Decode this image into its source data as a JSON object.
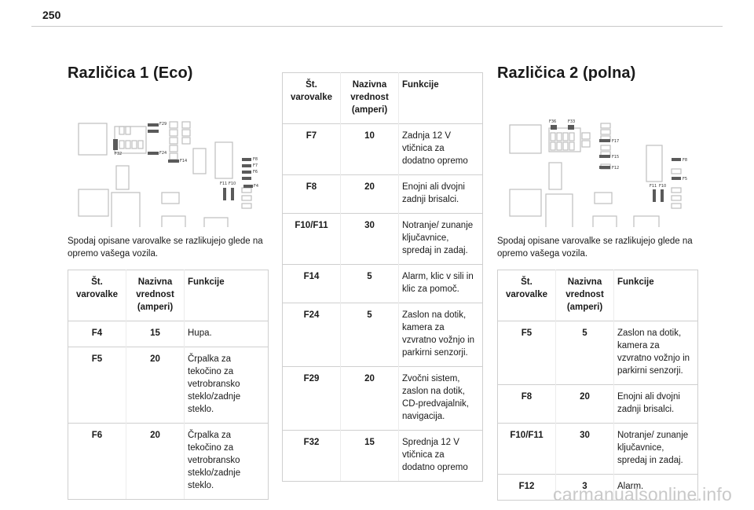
{
  "page_number": "250",
  "headers": {
    "col_num": "Št. varovalke",
    "col_amp": "Nazivna vrednost (amperi)",
    "col_fn": "Funkcije"
  },
  "variant1": {
    "title": "Različica 1 (Eco)",
    "description": "Spodaj opisane varovalke se razlikujejo glede na opremo vašega vozila.",
    "diagram_labels": [
      "F29",
      "F32",
      "F24",
      "F14",
      "F8",
      "F7",
      "F6",
      "F11",
      "F10",
      "F4"
    ],
    "rows": [
      {
        "num": "F4",
        "amp": "15",
        "fn": "Hupa."
      },
      {
        "num": "F5",
        "amp": "20",
        "fn": "Črpalka za tekočino za vetrobransko steklo/zadnje steklo."
      },
      {
        "num": "F6",
        "amp": "20",
        "fn": "Črpalka za tekočino za vetrobransko steklo/zadnje steklo."
      }
    ]
  },
  "variant1_cont": {
    "rows": [
      {
        "num": "F7",
        "amp": "10",
        "fn": "Zadnja 12 V vtičnica za dodatno opremo"
      },
      {
        "num": "F8",
        "amp": "20",
        "fn": "Enojni ali dvojni zadnji brisalci."
      },
      {
        "num": "F10/F11",
        "amp": "30",
        "fn": "Notranje/ zunanje ključavnice, spredaj in zadaj."
      },
      {
        "num": "F14",
        "amp": "5",
        "fn": "Alarm, klic v sili in klic za pomoč."
      },
      {
        "num": "F24",
        "amp": "5",
        "fn": "Zaslon na dotik, kamera za vzvratno vožnjo in parkirni senzorji."
      },
      {
        "num": "F29",
        "amp": "20",
        "fn": "Zvočni sistem, zaslon na dotik, CD-predvajalnik, navigacija."
      },
      {
        "num": "F32",
        "amp": "15",
        "fn": "Sprednja 12 V vtičnica za dodatno opremo"
      }
    ]
  },
  "variant2": {
    "title": "Različica 2 (polna)",
    "description": "Spodaj opisane varovalke se razlikujejo glede na opremo vašega vozila.",
    "diagram_labels": [
      "F36",
      "F33",
      "F17",
      "F15",
      "F12",
      "F8",
      "F5",
      "F11",
      "F10"
    ],
    "rows": [
      {
        "num": "F5",
        "amp": "5",
        "fn": "Zaslon na dotik, kamera za vzvratno vožnjo in parkirni senzorji."
      },
      {
        "num": "F8",
        "amp": "20",
        "fn": "Enojni ali dvojni zadnji brisalci."
      },
      {
        "num": "F10/F11",
        "amp": "30",
        "fn": "Notranje/ zunanje ključavnice, spredaj in zadaj."
      },
      {
        "num": "F12",
        "amp": "3",
        "fn": "Alarm."
      }
    ]
  },
  "watermark": "carmanualsonline.info"
}
